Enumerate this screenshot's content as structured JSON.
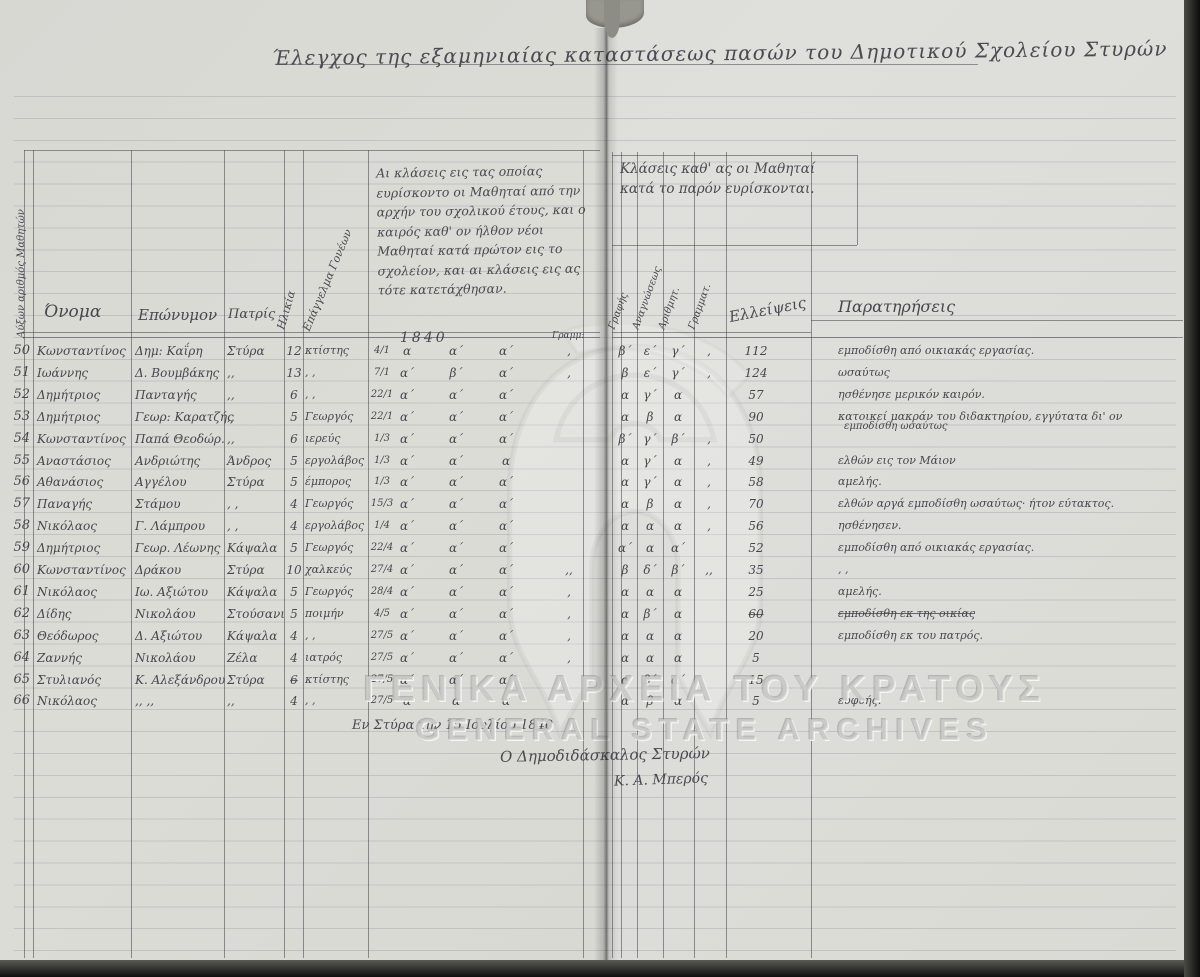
{
  "title": "Έλεγχος της εξαμηνιαίας καταστάσεως πασών του Δημοτικού Σχολείου Στυρών",
  "table": {
    "left_headers": {
      "index": "Αύξων αριθμός Μαθητών",
      "name": "Όνομα",
      "surname": "Επώνυμον",
      "patris": "Πατρίς",
      "age": "Ηλικία",
      "parent_occupation": "Επάγγελμα Γονέων"
    },
    "middle_header_note": "Αι κλάσεις εις τας οποίας ευρίσκοντο οι Μαθηταί από την αρχήν του σχολικού έτους, και ο καιρός καθ' ον ήλθον νέοι Μαθηταί κατά πρώτον εις το σχολείον, και αι κλάσεις εις ας τότε κατετάχθησαν.",
    "middle_year": "1840",
    "middle_gram_label": "Γραμμ:",
    "right_header_note": "Κλάσεις καθ' ας οι Μαθηταί κατά το παρόν ευρίσκονται.",
    "right_subject_headers": [
      "Γραφής",
      "Αναγνώσεως",
      "Αριθμητ.",
      "Γραμματ."
    ],
    "absences_header": "Ελλείψεις",
    "remarks_header": "Παρατηρήσεις"
  },
  "rows": [
    {
      "num": "50",
      "name": "Κωνσταντίνος",
      "surname": "Δημ: Καΐρη",
      "patris": "Στύρα",
      "age": "12",
      "occ": "κτίστης",
      "date": "4/1",
      "k1": "α",
      "k2": "α΄",
      "k3": "α΄",
      "gram": ",",
      "g1": "β΄",
      "g2": "ε΄",
      "g3": "γ΄",
      "comma": ",",
      "abs": "112",
      "remark": "εμποδίσθη από οικιακάς εργασίας."
    },
    {
      "num": "51",
      "name": "Ιωάννης",
      "surname": "Δ. Βουμβάκης",
      "patris": ",,",
      "age": "13",
      "occ": ",  ,",
      "date": "7/1",
      "k1": "α΄",
      "k2": "β΄",
      "k3": "α΄",
      "gram": ",",
      "g1": "β",
      "g2": "ε΄",
      "g3": "γ΄",
      "comma": ",",
      "abs": "124",
      "remark": "ωσαύτως"
    },
    {
      "num": "52",
      "name": "Δημήτριος",
      "surname": "Πανταγής",
      "patris": ",,",
      "age": "6",
      "occ": ",  ,",
      "date": "22/1",
      "k1": "α΄",
      "k2": "α΄",
      "k3": "α΄",
      "gram": "",
      "g1": "α",
      "g2": "γ΄",
      "g3": "α",
      "comma": "",
      "abs": "57",
      "remark": "ησθένησε μερικόν καιρόν."
    },
    {
      "num": "53",
      "name": "Δημήτριος",
      "surname": "Γεωρ: Καρατζής",
      "patris": ",,",
      "age": "5",
      "occ": "Γεωργός",
      "date": "22/1",
      "k1": "α΄",
      "k2": "α΄",
      "k3": "α΄",
      "gram": "",
      "g1": "α",
      "g2": "β",
      "g3": "α",
      "comma": "",
      "abs": "90",
      "remark": "κατοικεί μακράν του διδακτηρίου, εγγύτατα δι' ον",
      "remark2": "εμποδίσθη ωσαύτως"
    },
    {
      "num": "54",
      "name": "Κωνσταντίνος",
      "surname": "Παπά Θεοδώρ.",
      "patris": ",,",
      "age": "6",
      "occ": "ιερεύς",
      "date": "1/3",
      "k1": "α΄",
      "k2": "α΄",
      "k3": "α΄",
      "gram": "",
      "g1": "β΄",
      "g2": "γ΄",
      "g3": "β΄",
      "comma": ",",
      "abs": "50",
      "remark": ""
    },
    {
      "num": "55",
      "name": "Αναστάσιος",
      "surname": "Ανδριώτης",
      "patris": "Άνδρος",
      "age": "5",
      "occ": "εργολάβος",
      "date": "1/3",
      "k1": "α΄",
      "k2": "α΄",
      "k3": "α",
      "gram": "",
      "g1": "α",
      "g2": "γ΄",
      "g3": "α",
      "comma": ",",
      "abs": "49",
      "remark": "ελθών εις τον Μάιον"
    },
    {
      "num": "56",
      "name": "Αθανάσιος",
      "surname": "Αγγέλου",
      "patris": "Στύρα",
      "age": "5",
      "occ": "έμπορος",
      "date": "1/3",
      "k1": "α΄",
      "k2": "α΄",
      "k3": "α΄",
      "gram": "",
      "g1": "α",
      "g2": "γ΄",
      "g3": "α",
      "comma": ",",
      "abs": "58",
      "remark": "αμελής."
    },
    {
      "num": "57",
      "name": "Παναγής",
      "surname": "Στάμου",
      "patris": ",  ,",
      "age": "4",
      "occ": "Γεωργός",
      "date": "15/3",
      "k1": "α΄",
      "k2": "α΄",
      "k3": "α΄",
      "gram": "",
      "g1": "α",
      "g2": "β",
      "g3": "α",
      "comma": ",",
      "abs": "70",
      "remark": "ελθών αργά εμποδίσθη ωσαύτως· ήτον εύτακτος."
    },
    {
      "num": "58",
      "name": "Νικόλαος",
      "surname": "Γ. Λάμπρου",
      "patris": ", ,",
      "age": "4",
      "occ": "εργολάβος",
      "date": "1/4",
      "k1": "α΄",
      "k2": "α΄",
      "k3": "α΄",
      "gram": "",
      "g1": "α",
      "g2": "α",
      "g3": "α",
      "comma": ",",
      "abs": "56",
      "remark": "ησθένησεν."
    },
    {
      "num": "59",
      "name": "Δημήτριος",
      "surname": "Γεωρ. Λέωνης",
      "patris": "Κάψαλα",
      "age": "5",
      "occ": "Γεωργός",
      "date": "22/4",
      "k1": "α΄",
      "k2": "α΄",
      "k3": "α΄",
      "gram": "",
      "g1": "α΄",
      "g2": "α",
      "g3": "α΄",
      "comma": "",
      "abs": "52",
      "remark": "εμποδίσθη από οικιακάς εργασίας."
    },
    {
      "num": "60",
      "name": "Κωνσταντίνος",
      "surname": "Δράκου",
      "patris": "Στύρα",
      "age": "10",
      "occ": "χαλκεύς",
      "date": "27/4",
      "k1": "α΄",
      "k2": "α΄",
      "k3": "α΄",
      "gram": ",,",
      "g1": "β",
      "g2": "δ΄",
      "g3": "β΄",
      "comma": ",,",
      "abs": "35",
      "remark": ",  ,"
    },
    {
      "num": "61",
      "name": "Νικόλαος",
      "surname": "Ιω. Αξιώτου",
      "patris": "Κάψαλα",
      "age": "5",
      "occ": "Γεωργός",
      "date": "28/4",
      "k1": "α΄",
      "k2": "α΄",
      "k3": "α΄",
      "gram": ",",
      "g1": "α",
      "g2": "α",
      "g3": "α",
      "comma": "",
      "abs": "25",
      "remark": "αμελής."
    },
    {
      "num": "62",
      "name": "Δίδης",
      "surname": "Νικολάου",
      "patris": "Στούσανι",
      "age": "5",
      "occ": "ποιμήν",
      "date": "4/5",
      "k1": "α΄",
      "k2": "α΄",
      "k3": "α΄",
      "gram": ",",
      "g1": "α",
      "g2": "β΄",
      "g3": "α",
      "comma": "",
      "abs": "60",
      "abs_strike": true,
      "remark": "εμποδίσθη εκ της οικίας",
      "remark_strike": true
    },
    {
      "num": "63",
      "name": "Θεόδωρος",
      "surname": "Δ. Αξιώτου",
      "patris": "Κάψαλα",
      "age": "4",
      "occ": ",  ,",
      "date": "27/5",
      "k1": "α΄",
      "k2": "α΄",
      "k3": "α΄",
      "gram": ",",
      "g1": "α",
      "g2": "α",
      "g3": "α",
      "comma": "",
      "abs": "20",
      "remark": "εμποδίσθη εκ του πατρός."
    },
    {
      "num": "64",
      "name": "Ζαννής",
      "surname": "Νικολάου",
      "patris": "Ζέλα",
      "age": "4",
      "occ": "ιατρός",
      "date": "27/5",
      "k1": "α΄",
      "k2": "α΄",
      "k3": "α΄",
      "gram": ",",
      "g1": "α",
      "g2": "α",
      "g3": "α",
      "comma": "",
      "abs": "5",
      "remark": ""
    },
    {
      "num": "65",
      "name": "Στυλιανός",
      "surname": "Κ. Αλεξάνδρου",
      "patris": "Στύρα",
      "age": "6",
      "age_strike": true,
      "occ": "κτίστης",
      "date": "27/5",
      "k1": "α΄",
      "k2": "α΄",
      "k3": "α΄",
      "gram": "",
      "g1": "α",
      "g2": "β΄",
      "g3": "α΄",
      "comma": "",
      "abs": "15",
      "remark": ""
    },
    {
      "num": "66",
      "name": "Νικόλαος",
      "surname": ",,  ,,",
      "patris": ",,",
      "age": "4",
      "occ": ",  ,",
      "date": "27/5",
      "k1": "α",
      "k2": "α",
      "k3": "α",
      "gram": "",
      "g1": "α",
      "g2": "β",
      "g3": "α",
      "comma": "",
      "abs": "5",
      "remark": "ευφυής."
    }
  ],
  "footer": {
    "place_date": "Εν Στύρα την 15 Ιουλίου 1840",
    "signature_title": "Ο Δημοδιδάσκαλος Στυρών",
    "signature_name": "Κ. Α. Μπερός"
  },
  "watermark": {
    "line1": "ΓΕΝΙΚΑ ΑΡΧΕΙΑ ΤΟΥ ΚΡΑΤΟΥΣ",
    "line2": "GENERAL STATE ARCHIVES"
  }
}
